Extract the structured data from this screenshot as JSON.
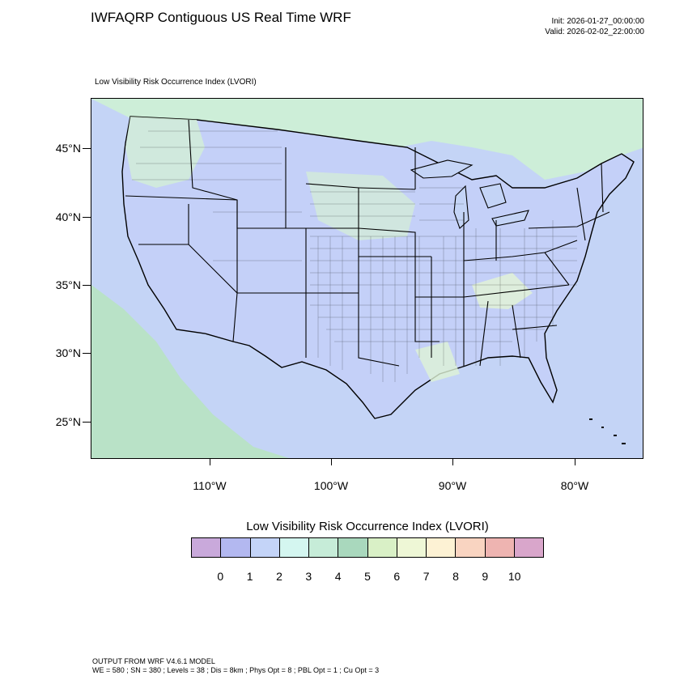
{
  "header": {
    "title": "IWFAQRP Contiguous US Real Time WRF",
    "init": "Init: 2026-01-27_00:00:00",
    "valid": "Valid: 2026-02-02_22:00:00"
  },
  "map": {
    "subtitle": "Low Visibility Risk Occurrence Index   (LVORI)",
    "lat_labels": [
      "45°N",
      "40°N",
      "35°N",
      "30°N",
      "25°N"
    ],
    "lon_labels": [
      "110°W",
      "100°W",
      "90°W",
      "80°W"
    ],
    "colors": {
      "ocean": "#c4d4f6",
      "land_low": "#c4d0f8",
      "land_green": "#cdeed8",
      "land_teal": "#b6e3c8",
      "land_yellow": "#eef7d8",
      "border": "#000000"
    }
  },
  "legend": {
    "title": "Low Visibility Risk Occurrence Index  (LVORI)",
    "labels": [
      "0",
      "1",
      "2",
      "3",
      "4",
      "5",
      "6",
      "7",
      "8",
      "9",
      "10"
    ],
    "colors": [
      "#c9a9db",
      "#b3b8f0",
      "#c4d4f8",
      "#d4f6f0",
      "#c6ecd8",
      "#a9d8bd",
      "#d9f0c6",
      "#eef7d6",
      "#fdf2d4",
      "#f9d4c1",
      "#eeb4b1",
      "#d9a6cb"
    ]
  },
  "footer": {
    "line1": "OUTPUT FROM WRF V4.6.1 MODEL",
    "line2": "WE = 580 ; SN = 380 ; Levels = 38 ; Dis = 8km ; Phys Opt = 8 ; PBL Opt = 1 ; Cu Opt = 3"
  }
}
